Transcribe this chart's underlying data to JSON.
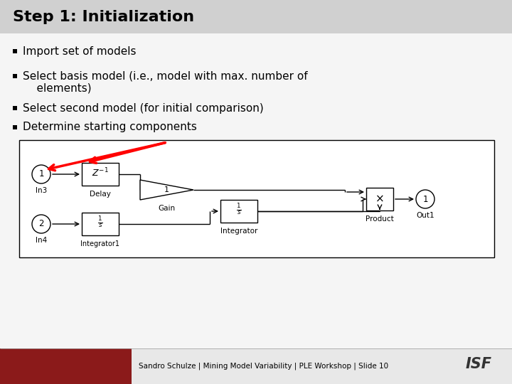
{
  "title": "Step 1: Initialization",
  "title_bg": "#d0d0d0",
  "slide_bg": "#e8e8e8",
  "content_bg": "#f5f5f5",
  "footer_bg": "#8B1A1A",
  "bullet_items": [
    "Import set of models",
    "Select basis model (i.e., model with max. number of\n    elements)",
    "Select second model (for initial comparison)",
    "Determine starting components"
  ],
  "footer_text": "Sandro Schulze | Mining Model Variability | PLE Workshop | Slide 10",
  "diagram_bg": "#ffffff"
}
